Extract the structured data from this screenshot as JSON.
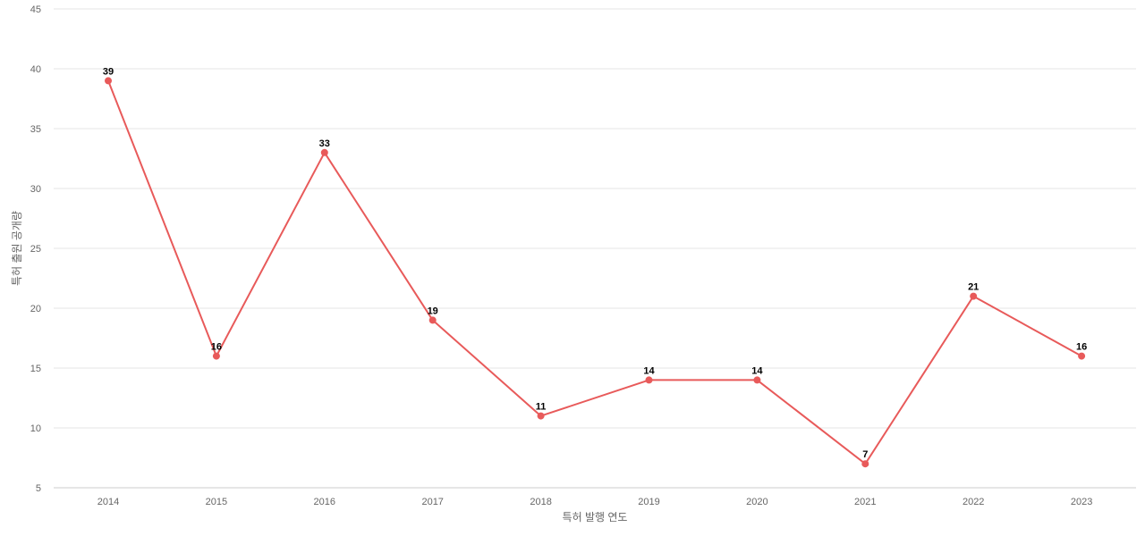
{
  "chart_data": {
    "type": "line",
    "xlabel": "특허 발행 연도",
    "ylabel": "특허 출원 공개량",
    "ylim": [
      5,
      45
    ],
    "yticks": [
      5,
      10,
      15,
      20,
      25,
      30,
      35,
      40,
      45
    ],
    "grid": true,
    "categories": [
      "2014",
      "2015",
      "2016",
      "2017",
      "2018",
      "2019",
      "2020",
      "2021",
      "2022",
      "2023"
    ],
    "series": [
      {
        "values": [
          39,
          16,
          33,
          19,
          11,
          14,
          14,
          7,
          21,
          16
        ],
        "color": "#e85a5a"
      }
    ]
  }
}
